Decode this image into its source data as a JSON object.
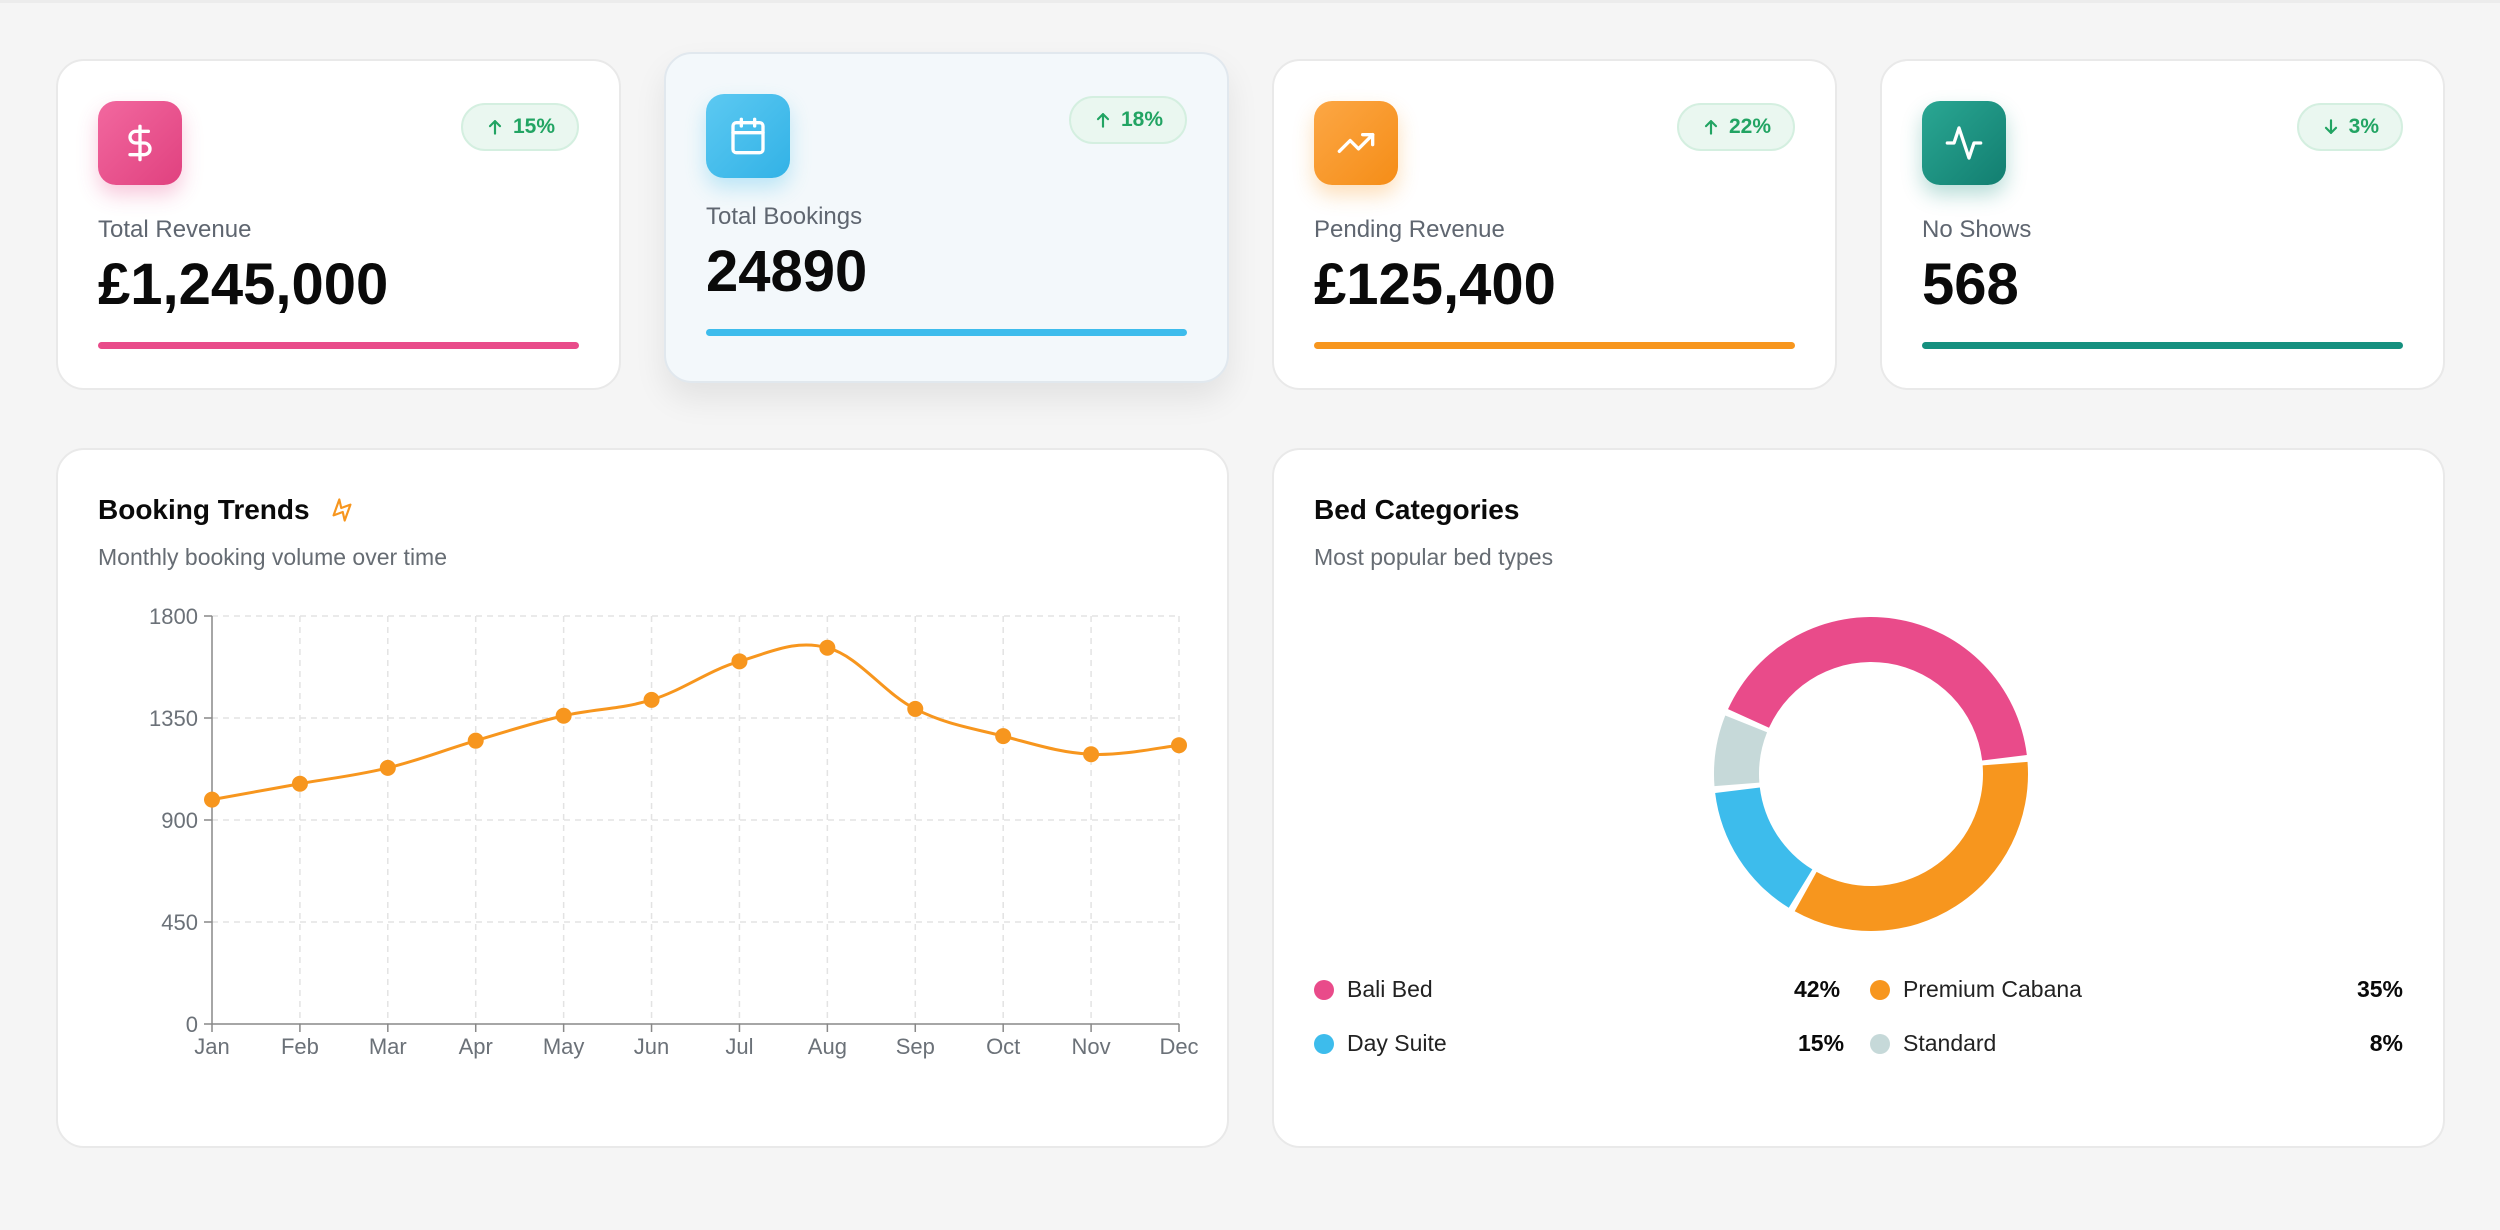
{
  "colors": {
    "pink": "#e94b8a",
    "blue": "#3dbcec",
    "orange": "#f7961e",
    "teal": "#15907f",
    "grey": "#c6d9d9",
    "green_badge": "#22a463"
  },
  "stats": [
    {
      "label": "Total Revenue",
      "value": "£1,245,000",
      "change": "15%",
      "direction": "up",
      "icon": "dollar-icon",
      "color": "#e94b8a"
    },
    {
      "label": "Total Bookings",
      "value": "24890",
      "change": "18%",
      "direction": "up",
      "icon": "calendar-icon",
      "color": "#3dbcec"
    },
    {
      "label": "Pending Revenue",
      "value": "£125,400",
      "change": "22%",
      "direction": "up",
      "icon": "trending-up-icon",
      "color": "#f7961e"
    },
    {
      "label": "No Shows",
      "value": "568",
      "change": "3%",
      "direction": "down",
      "icon": "activity-icon",
      "color": "#15907f"
    }
  ],
  "trends": {
    "title": "Booking Trends",
    "subtitle": "Monthly booking volume over time",
    "title_icon": "zap-icon"
  },
  "beds": {
    "title": "Bed Categories",
    "subtitle": "Most popular bed types"
  },
  "chart_data": [
    {
      "type": "line",
      "title": "Booking Trends",
      "subtitle": "Monthly booking volume over time",
      "categories": [
        "Jan",
        "Feb",
        "Mar",
        "Apr",
        "May",
        "Jun",
        "Jul",
        "Aug",
        "Sep",
        "Oct",
        "Nov",
        "Dec"
      ],
      "values": [
        990,
        1060,
        1130,
        1250,
        1360,
        1430,
        1600,
        1660,
        1390,
        1270,
        1190,
        1230
      ],
      "yticks": [
        "0",
        "450",
        "900",
        "1350",
        "1800"
      ],
      "ylim": [
        0,
        1800
      ],
      "grid": true,
      "color": "#f7961e"
    },
    {
      "type": "pie",
      "title": "Bed Categories",
      "subtitle": "Most popular bed types",
      "donut": true,
      "slices": [
        {
          "label": "Bali Bed",
          "value": 42,
          "pct": "42%",
          "color": "#e94b8a"
        },
        {
          "label": "Premium Cabana",
          "value": 35,
          "pct": "35%",
          "color": "#f7961e"
        },
        {
          "label": "Day Suite",
          "value": 15,
          "pct": "15%",
          "color": "#3dbcec"
        },
        {
          "label": "Standard",
          "value": 8,
          "pct": "8%",
          "color": "#c6d9d9"
        }
      ]
    }
  ]
}
